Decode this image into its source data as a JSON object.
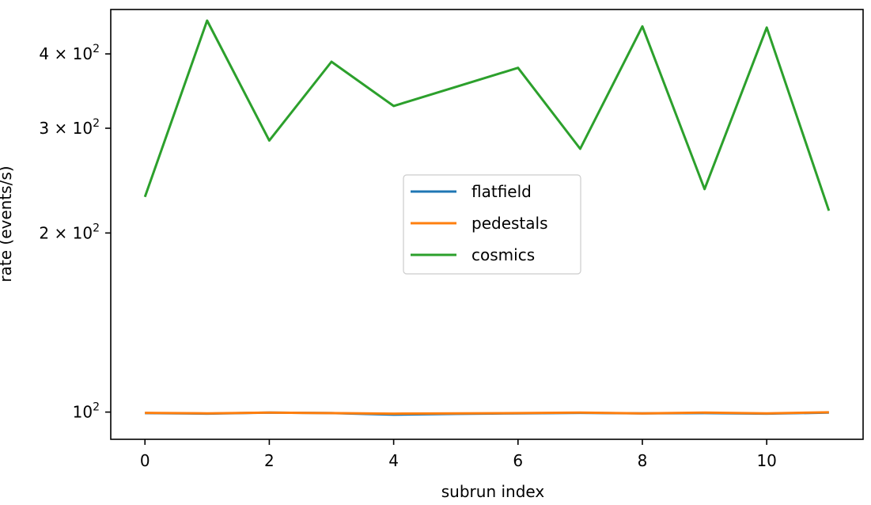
{
  "chart_data": {
    "type": "line",
    "title": "",
    "xlabel": "subrun index",
    "ylabel": "rate (events/s)",
    "yscale": "log",
    "xlim": [
      -0.55,
      11.55
    ],
    "ylim": [
      90,
      475
    ],
    "x": [
      0,
      1,
      2,
      3,
      4,
      5,
      6,
      7,
      8,
      9,
      10,
      11
    ],
    "x_ticks": [
      0,
      2,
      4,
      6,
      8,
      10
    ],
    "x_tick_labels": [
      "0",
      "2",
      "4",
      "6",
      "8",
      "10"
    ],
    "y_ticks": [
      {
        "value": 100,
        "base": "10",
        "exp": "2",
        "coef": ""
      },
      {
        "value": 200,
        "base": "10",
        "exp": "2",
        "coef": "2 × "
      },
      {
        "value": 300,
        "base": "10",
        "exp": "2",
        "coef": "3 × "
      },
      {
        "value": 400,
        "base": "10",
        "exp": "2",
        "coef": "4 × "
      }
    ],
    "series": [
      {
        "name": "flatfield",
        "color": "#1f77b4",
        "values": [
          99.6,
          99.4,
          99.8,
          99.6,
          99.0,
          99.3,
          99.5,
          99.7,
          99.5,
          99.6,
          99.4,
          99.8
        ]
      },
      {
        "name": "pedestals",
        "color": "#ff7f0e",
        "values": [
          99.7,
          99.5,
          99.8,
          99.6,
          99.4,
          99.5,
          99.6,
          99.8,
          99.5,
          99.8,
          99.5,
          99.9
        ]
      },
      {
        "name": "cosmics",
        "color": "#2ca02c",
        "values": [
          230,
          455,
          286,
          388,
          327,
          352,
          379,
          277,
          445,
          237,
          443,
          218
        ]
      }
    ],
    "legend": {
      "placement": "center"
    },
    "grid": false
  }
}
